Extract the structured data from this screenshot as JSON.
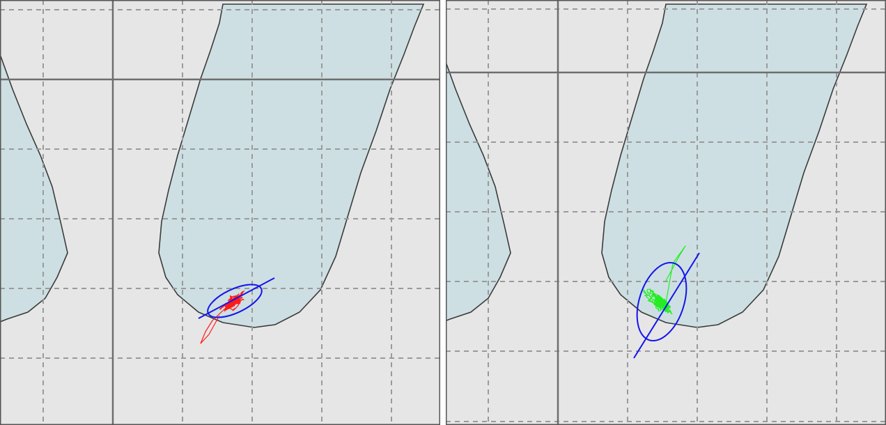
{
  "chart_data": [
    {
      "type": "line",
      "panel": "left",
      "grid": true,
      "trace_color": "#ff1a1a",
      "ellipse_color": "#1414ee",
      "background": "#e6e6e6",
      "foot_fill": "#cddfe2",
      "ellipse": {
        "cx": 3.27,
        "cy": 1.76,
        "rx": 0.42,
        "ry": 0.17,
        "angle_deg": -25
      },
      "principal_axis": [
        [
          2.75,
          1.51
        ],
        [
          3.84,
          2.09
        ]
      ],
      "grid_x": [
        0.52,
        1.52,
        2.52,
        3.52,
        4.52,
        5.52,
        6.52
      ],
      "grid_y": [
        5.94,
        4.94,
        3.94,
        2.94,
        1.94,
        0.94
      ],
      "major_x": 1.52,
      "major_y": 4.94
    },
    {
      "type": "line",
      "panel": "right",
      "grid": true,
      "trace_color": "#22ee22",
      "ellipse_color": "#1414ee",
      "background": "#e6e6e6",
      "foot_fill": "#cddfe2",
      "ellipse": {
        "cx": 3.04,
        "cy": 1.75,
        "rx": 0.32,
        "ry": 0.58,
        "angle_deg": 18
      },
      "principal_axis": [
        [
          2.64,
          0.94
        ],
        [
          3.58,
          2.45
        ]
      ],
      "grid_x": [
        0.55,
        1.55,
        2.55,
        3.55,
        4.55,
        5.55
      ],
      "grid_y": [
        5.95,
        5.04,
        4.04,
        3.04,
        2.04,
        1.04,
        0.03
      ],
      "major_x": 1.55,
      "major_y": 5.04
    }
  ]
}
